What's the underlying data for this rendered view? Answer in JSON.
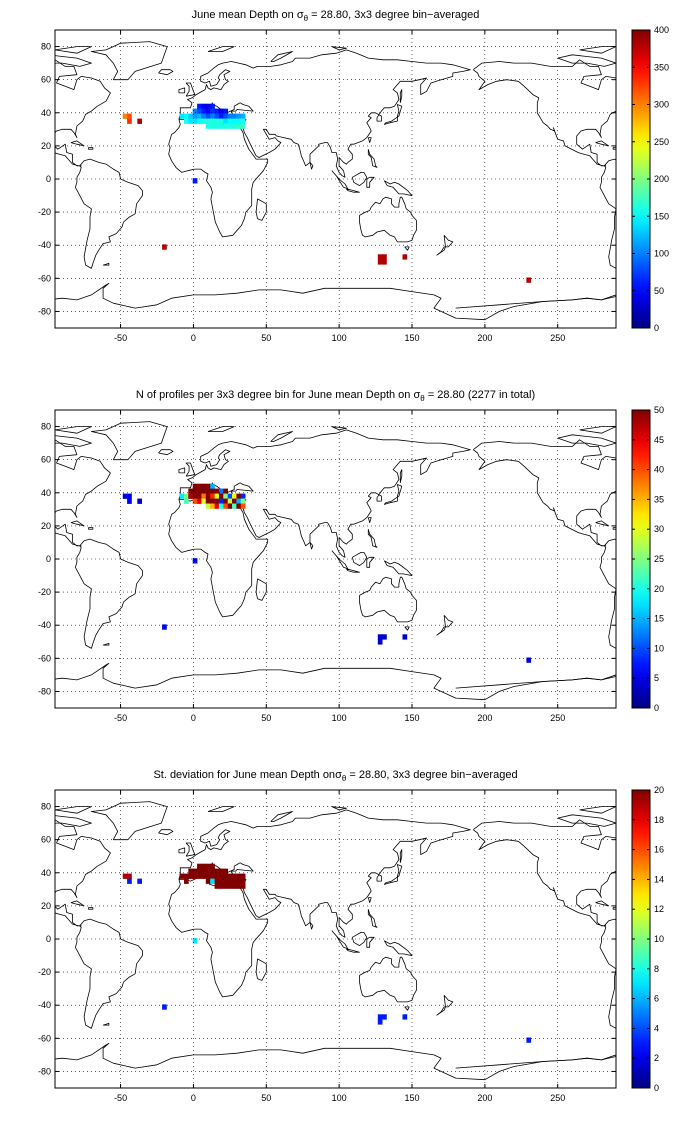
{
  "figure": {
    "panels": [
      {
        "title_pre": "June mean Depth on ",
        "title_sym": "σ",
        "title_sub": "θ",
        "title_post": " = 28.80, 3x3 degree bin−averaged",
        "colorbar": {
          "min": 0,
          "max": 400,
          "ticks": [
            "0",
            "50",
            "100",
            "150",
            "200",
            "250",
            "300",
            "350",
            "400"
          ]
        }
      },
      {
        "title_pre": "N of profiles per 3x3 degree bin for June mean Depth on ",
        "title_sym": "σ",
        "title_sub": "θ",
        "title_post": " = 28.80 (2277 in total)",
        "colorbar": {
          "min": 0,
          "max": 50,
          "ticks": [
            "0",
            "5",
            "10",
            "15",
            "20",
            "25",
            "30",
            "35",
            "40",
            "45",
            "50"
          ]
        }
      },
      {
        "title_pre": "St. deviation for June mean Depth on",
        "title_sym": "σ",
        "title_sub": "θ",
        "title_post": " = 28.80, 3x3 degree bin−averaged",
        "colorbar": {
          "min": 0,
          "max": 20,
          "ticks": [
            "0",
            "2",
            "4",
            "6",
            "8",
            "10",
            "12",
            "14",
            "16",
            "18",
            "20"
          ]
        }
      }
    ],
    "axes": {
      "xlim": [
        -95,
        290
      ],
      "ylim": [
        -90,
        90
      ],
      "xticks": [
        -50,
        0,
        50,
        100,
        150,
        200,
        250
      ],
      "yticks": [
        -80,
        -60,
        -40,
        -20,
        0,
        20,
        40,
        60,
        80
      ],
      "grid": "dotted"
    },
    "colormap": "jet"
  },
  "chart_data": [
    {
      "type": "heatmap",
      "bin_size_deg": 3,
      "cells": [
        [
          -37,
          35,
          380
        ],
        [
          -47,
          38,
          300
        ],
        [
          -44,
          38,
          320
        ],
        [
          -44,
          35,
          330
        ],
        [
          -20,
          -41,
          380
        ],
        [
          1,
          -1,
          60
        ],
        [
          128,
          -47,
          380
        ],
        [
          131,
          -47,
          380
        ],
        [
          128,
          -50,
          380
        ],
        [
          131,
          -50,
          380
        ],
        [
          145,
          -47,
          380
        ],
        [
          230,
          -61,
          380
        ],
        [
          -8,
          38,
          140
        ],
        [
          -5,
          38,
          150
        ],
        [
          -5,
          35,
          160
        ],
        [
          -2,
          38,
          130
        ],
        [
          -2,
          35,
          140
        ],
        [
          1,
          41,
          100
        ],
        [
          1,
          38,
          110
        ],
        [
          1,
          35,
          140
        ],
        [
          4,
          44,
          60
        ],
        [
          4,
          41,
          80
        ],
        [
          4,
          38,
          120
        ],
        [
          4,
          35,
          150
        ],
        [
          7,
          44,
          50
        ],
        [
          7,
          41,
          60
        ],
        [
          7,
          38,
          100
        ],
        [
          7,
          35,
          160
        ],
        [
          10,
          44,
          40
        ],
        [
          10,
          41,
          50
        ],
        [
          10,
          38,
          80
        ],
        [
          10,
          35,
          160
        ],
        [
          10,
          32,
          160
        ],
        [
          13,
          44,
          60
        ],
        [
          13,
          41,
          70
        ],
        [
          13,
          38,
          100
        ],
        [
          13,
          35,
          160
        ],
        [
          13,
          32,
          160
        ],
        [
          16,
          41,
          60
        ],
        [
          16,
          38,
          80
        ],
        [
          16,
          35,
          160
        ],
        [
          16,
          32,
          160
        ],
        [
          19,
          41,
          40
        ],
        [
          19,
          38,
          60
        ],
        [
          19,
          35,
          160
        ],
        [
          19,
          32,
          160
        ],
        [
          22,
          41,
          60
        ],
        [
          22,
          38,
          80
        ],
        [
          22,
          35,
          140
        ],
        [
          22,
          32,
          160
        ],
        [
          25,
          38,
          100
        ],
        [
          25,
          35,
          150
        ],
        [
          25,
          32,
          160
        ],
        [
          28,
          38,
          100
        ],
        [
          28,
          35,
          150
        ],
        [
          28,
          32,
          160
        ],
        [
          31,
          38,
          110
        ],
        [
          31,
          35,
          150
        ],
        [
          31,
          32,
          170
        ],
        [
          34,
          38,
          120
        ],
        [
          34,
          35,
          160
        ],
        [
          34,
          32,
          170
        ]
      ]
    },
    {
      "type": "heatmap",
      "bin_size_deg": 3,
      "cells": [
        [
          -37,
          35,
          4
        ],
        [
          -47,
          38,
          5
        ],
        [
          -44,
          38,
          5
        ],
        [
          -44,
          35,
          6
        ],
        [
          -20,
          -41,
          5
        ],
        [
          1,
          -1,
          5
        ],
        [
          128,
          -47,
          4
        ],
        [
          131,
          -47,
          4
        ],
        [
          128,
          -50,
          4
        ],
        [
          145,
          -47,
          4
        ],
        [
          230,
          -61,
          4
        ],
        [
          -8,
          38,
          18
        ],
        [
          -5,
          38,
          25
        ],
        [
          -5,
          35,
          22
        ],
        [
          -2,
          41,
          50
        ],
        [
          -2,
          38,
          48
        ],
        [
          1,
          44,
          50
        ],
        [
          1,
          41,
          50
        ],
        [
          1,
          38,
          50
        ],
        [
          1,
          35,
          40
        ],
        [
          4,
          44,
          50
        ],
        [
          4,
          41,
          50
        ],
        [
          4,
          38,
          50
        ],
        [
          4,
          35,
          45
        ],
        [
          7,
          44,
          50
        ],
        [
          7,
          41,
          50
        ],
        [
          7,
          38,
          38
        ],
        [
          7,
          35,
          30
        ],
        [
          10,
          44,
          50
        ],
        [
          10,
          41,
          50
        ],
        [
          10,
          38,
          50
        ],
        [
          10,
          35,
          50
        ],
        [
          10,
          32,
          28
        ],
        [
          13,
          44,
          15
        ],
        [
          13,
          41,
          50
        ],
        [
          13,
          38,
          42
        ],
        [
          13,
          35,
          50
        ],
        [
          13,
          32,
          35
        ],
        [
          16,
          41,
          50
        ],
        [
          16,
          38,
          30
        ],
        [
          16,
          35,
          50
        ],
        [
          16,
          32,
          45
        ],
        [
          19,
          41,
          12
        ],
        [
          19,
          38,
          50
        ],
        [
          19,
          35,
          8
        ],
        [
          19,
          32,
          20
        ],
        [
          22,
          41,
          50
        ],
        [
          22,
          38,
          25
        ],
        [
          22,
          35,
          50
        ],
        [
          22,
          32,
          40
        ],
        [
          25,
          38,
          10
        ],
        [
          25,
          35,
          28
        ],
        [
          25,
          32,
          50
        ],
        [
          28,
          38,
          30
        ],
        [
          28,
          35,
          50
        ],
        [
          28,
          32,
          22
        ],
        [
          31,
          38,
          50
        ],
        [
          31,
          35,
          15
        ],
        [
          31,
          32,
          50
        ],
        [
          34,
          38,
          8
        ],
        [
          34,
          35,
          25
        ],
        [
          34,
          32,
          40
        ]
      ]
    },
    {
      "type": "heatmap",
      "bin_size_deg": 3,
      "cells": [
        [
          -37,
          35,
          3
        ],
        [
          -47,
          38,
          19
        ],
        [
          -44,
          38,
          19
        ],
        [
          -44,
          35,
          3
        ],
        [
          -20,
          -41,
          3
        ],
        [
          1,
          -1,
          7
        ],
        [
          128,
          -47,
          3
        ],
        [
          131,
          -47,
          3
        ],
        [
          128,
          -50,
          3
        ],
        [
          145,
          -47,
          3
        ],
        [
          230,
          -61,
          3
        ],
        [
          -8,
          38,
          20
        ],
        [
          -5,
          38,
          20
        ],
        [
          -5,
          35,
          20
        ],
        [
          -2,
          41,
          20
        ],
        [
          -2,
          38,
          20
        ],
        [
          1,
          41,
          20
        ],
        [
          1,
          38,
          20
        ],
        [
          4,
          44,
          20
        ],
        [
          4,
          41,
          20
        ],
        [
          4,
          38,
          20
        ],
        [
          7,
          44,
          20
        ],
        [
          7,
          41,
          20
        ],
        [
          7,
          38,
          20
        ],
        [
          10,
          44,
          20
        ],
        [
          10,
          41,
          20
        ],
        [
          10,
          38,
          20
        ],
        [
          10,
          35,
          20
        ],
        [
          13,
          44,
          20
        ],
        [
          13,
          41,
          20
        ],
        [
          13,
          38,
          20
        ],
        [
          13,
          35,
          7
        ],
        [
          16,
          41,
          20
        ],
        [
          16,
          38,
          20
        ],
        [
          16,
          35,
          20
        ],
        [
          16,
          32,
          20
        ],
        [
          19,
          41,
          20
        ],
        [
          19,
          38,
          20
        ],
        [
          19,
          35,
          20
        ],
        [
          19,
          32,
          20
        ],
        [
          22,
          41,
          20
        ],
        [
          22,
          38,
          20
        ],
        [
          22,
          35,
          20
        ],
        [
          22,
          32,
          20
        ],
        [
          25,
          38,
          20
        ],
        [
          25,
          35,
          20
        ],
        [
          25,
          32,
          20
        ],
        [
          28,
          38,
          20
        ],
        [
          28,
          35,
          20
        ],
        [
          28,
          32,
          20
        ],
        [
          31,
          38,
          20
        ],
        [
          31,
          35,
          20
        ],
        [
          31,
          32,
          20
        ],
        [
          34,
          38,
          20
        ],
        [
          34,
          35,
          20
        ],
        [
          34,
          32,
          20
        ]
      ]
    }
  ]
}
